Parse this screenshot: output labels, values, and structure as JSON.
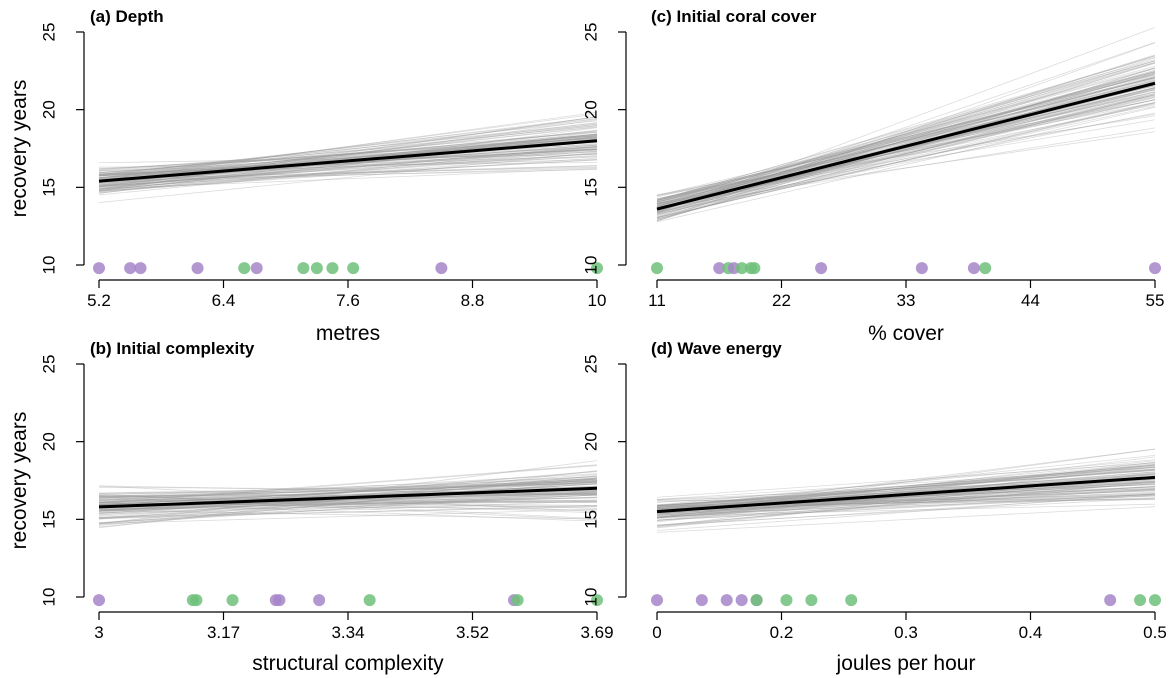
{
  "figure": {
    "ylabel": "recovery years"
  },
  "colors": {
    "draws": "#9a9a9a",
    "fit": "#000000",
    "group_a": "#a685c9",
    "group_b": "#6fbf7a"
  },
  "chart_data": [
    {
      "id": "depth",
      "type": "line",
      "title": "(a) Depth",
      "xlabel": "metres",
      "ylabel": "recovery years",
      "xlim": [
        5.2,
        10
      ],
      "ylim": [
        10,
        25
      ],
      "x_ticks": [
        "5.2",
        "6.4",
        "7.6",
        "8.8",
        "10"
      ],
      "y_ticks": [
        "10",
        "15",
        "20",
        "25"
      ],
      "fit": {
        "x": [
          5.2,
          10
        ],
        "y": [
          15.4,
          18.0
        ]
      },
      "draws": {
        "n": 100,
        "start_center": 15.4,
        "start_spread": 3.0,
        "end_center": 18.0,
        "end_spread": 4.8
      },
      "points_y": 9.8,
      "points": [
        {
          "x": 5.2,
          "group": "a"
        },
        {
          "x": 5.5,
          "group": "a"
        },
        {
          "x": 5.6,
          "group": "a"
        },
        {
          "x": 6.15,
          "group": "a"
        },
        {
          "x": 6.6,
          "group": "b"
        },
        {
          "x": 6.72,
          "group": "a"
        },
        {
          "x": 7.17,
          "group": "b"
        },
        {
          "x": 7.3,
          "group": "b"
        },
        {
          "x": 7.45,
          "group": "b"
        },
        {
          "x": 7.65,
          "group": "b"
        },
        {
          "x": 8.5,
          "group": "a"
        },
        {
          "x": 10.0,
          "group": "b"
        }
      ]
    },
    {
      "id": "cover",
      "type": "line",
      "title": "(c) Initial coral cover",
      "xlabel": "% cover",
      "ylabel": "",
      "xlim": [
        11,
        55
      ],
      "ylim": [
        10,
        25
      ],
      "x_ticks": [
        "11",
        "22",
        "33",
        "44",
        "55"
      ],
      "y_ticks": [
        "10",
        "15",
        "20",
        "25"
      ],
      "fit": {
        "x": [
          11,
          55
        ],
        "y": [
          13.6,
          21.7
        ]
      },
      "draws": {
        "n": 100,
        "start_center": 13.6,
        "start_spread": 2.6,
        "end_center": 21.7,
        "end_spread": 7.0
      },
      "points_y": 9.8,
      "points": [
        {
          "x": 11.0,
          "group": "b"
        },
        {
          "x": 16.5,
          "group": "a"
        },
        {
          "x": 17.3,
          "group": "b"
        },
        {
          "x": 17.8,
          "group": "a"
        },
        {
          "x": 18.5,
          "group": "b"
        },
        {
          "x": 19.3,
          "group": "b"
        },
        {
          "x": 19.6,
          "group": "b"
        },
        {
          "x": 25.5,
          "group": "a"
        },
        {
          "x": 34.4,
          "group": "a"
        },
        {
          "x": 39.0,
          "group": "a"
        },
        {
          "x": 40.0,
          "group": "b"
        },
        {
          "x": 55.0,
          "group": "a"
        }
      ]
    },
    {
      "id": "complexity",
      "type": "line",
      "title": "(b) Initial complexity",
      "xlabel": "structural complexity",
      "ylabel": "recovery years",
      "xlim": [
        3,
        3.69
      ],
      "ylim": [
        10,
        25
      ],
      "x_ticks": [
        "3",
        "3.17",
        "3.34",
        "3.52",
        "3.69"
      ],
      "y_ticks": [
        "10",
        "15",
        "20",
        "25"
      ],
      "fit": {
        "x": [
          3,
          3.69
        ],
        "y": [
          15.8,
          17.0
        ]
      },
      "draws": {
        "n": 100,
        "start_center": 15.8,
        "start_spread": 3.8,
        "end_center": 17.0,
        "end_spread": 5.0
      },
      "points_y": 9.8,
      "points": [
        {
          "x": 3.0,
          "group": "a"
        },
        {
          "x": 3.13,
          "group": "b"
        },
        {
          "x": 3.135,
          "group": "b"
        },
        {
          "x": 3.185,
          "group": "b"
        },
        {
          "x": 3.245,
          "group": "a"
        },
        {
          "x": 3.25,
          "group": "a"
        },
        {
          "x": 3.305,
          "group": "a"
        },
        {
          "x": 3.375,
          "group": "b"
        },
        {
          "x": 3.575,
          "group": "a"
        },
        {
          "x": 3.58,
          "group": "b"
        },
        {
          "x": 3.69,
          "group": "b"
        }
      ]
    },
    {
      "id": "wave",
      "type": "line",
      "title": "(d) Wave energy",
      "xlabel": "joules per hour",
      "ylabel": "",
      "xlim": [
        0,
        0.5
      ],
      "ylim": [
        10,
        25
      ],
      "x_ticks": [
        "0",
        "0.2",
        "0.3",
        "0.4",
        "0.5"
      ],
      "y_ticks": [
        "10",
        "15",
        "20",
        "25"
      ],
      "fit": {
        "x": [
          0,
          0.5
        ],
        "y": [
          15.5,
          17.7
        ]
      },
      "draws": {
        "n": 100,
        "start_center": 15.5,
        "start_spread": 3.0,
        "end_center": 17.7,
        "end_spread": 4.5
      },
      "points_y": 9.8,
      "points": [
        {
          "x": 0.0,
          "group": "a"
        },
        {
          "x": 0.045,
          "group": "a"
        },
        {
          "x": 0.07,
          "group": "a"
        },
        {
          "x": 0.085,
          "group": "a"
        },
        {
          "x": 0.1,
          "group": "a"
        },
        {
          "x": 0.1,
          "group": "b"
        },
        {
          "x": 0.13,
          "group": "b"
        },
        {
          "x": 0.155,
          "group": "b"
        },
        {
          "x": 0.195,
          "group": "b"
        },
        {
          "x": 0.455,
          "group": "a"
        },
        {
          "x": 0.485,
          "group": "b"
        },
        {
          "x": 0.5,
          "group": "b"
        }
      ]
    }
  ]
}
